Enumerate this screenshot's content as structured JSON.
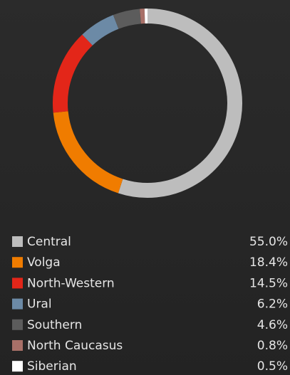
{
  "chart_data": {
    "type": "donut",
    "categories": [
      "Central",
      "Volga",
      "North-Western",
      "Ural",
      "Southern",
      "North Caucasus",
      "Siberian"
    ],
    "values": [
      55.0,
      18.4,
      14.5,
      6.2,
      4.6,
      0.8,
      0.5
    ],
    "value_labels": [
      "55.0%",
      "18.4%",
      "14.5%",
      "6.2%",
      "4.6%",
      "0.8%",
      "0.5%"
    ],
    "colors": [
      "#bdbdbd",
      "#f07c00",
      "#e32619",
      "#6c8aa6",
      "#5c5c5c",
      "#a87068",
      "#ffffff"
    ],
    "legend": "bottom"
  }
}
